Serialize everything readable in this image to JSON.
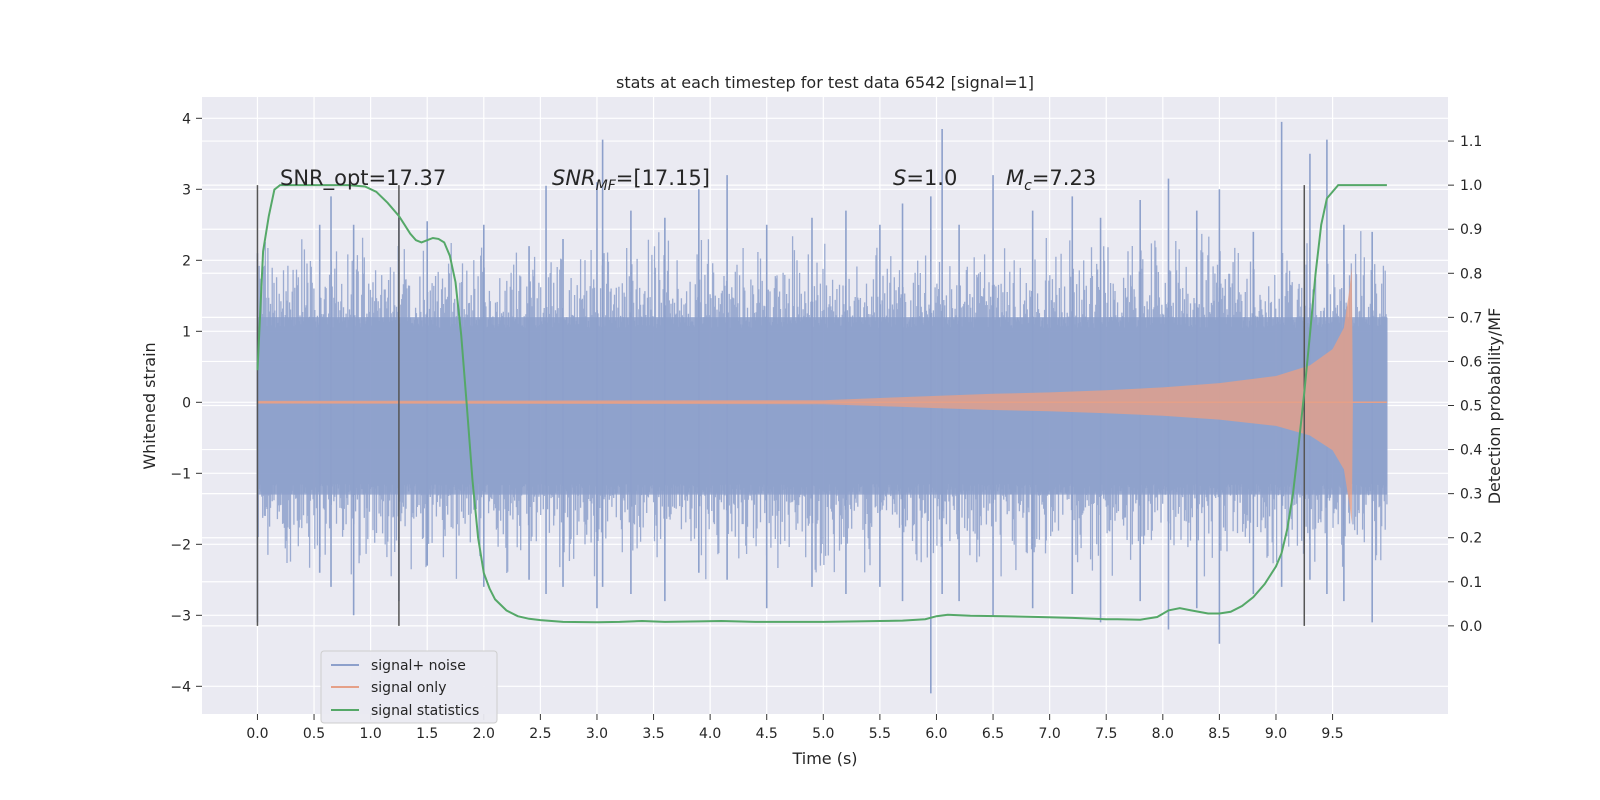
{
  "chart_data": {
    "type": "line",
    "title": "stats at each timestep for test data 6542 [signal=1]",
    "xlabel": "Time (s)",
    "ylabel_left": "Whitened strain",
    "ylabel_right": "Detection probability/MF",
    "xlim": [
      -0.49,
      10.52
    ],
    "ylim_left": [
      -4.39,
      4.3
    ],
    "ylim_right": [
      -0.2,
      1.2
    ],
    "x_ticks": [
      "0.0",
      "0.5",
      "1.0",
      "1.5",
      "2.0",
      "2.5",
      "3.0",
      "3.5",
      "4.0",
      "4.5",
      "5.0",
      "5.5",
      "6.0",
      "6.5",
      "7.0",
      "7.5",
      "8.0",
      "8.5",
      "9.0",
      "9.5"
    ],
    "y_ticks_left": [
      "4",
      "3",
      "2",
      "1",
      "0",
      "−1",
      "−2",
      "−3",
      "−4"
    ],
    "y_ticks_right": [
      "1.1",
      "1.0",
      "0.9",
      "0.8",
      "0.7",
      "0.6",
      "0.5",
      "0.4",
      "0.3",
      "0.2",
      "0.1",
      "0.0"
    ],
    "annotations": {
      "snr_opt": "SNR_opt=17.37",
      "snr_mf": {
        "sym": "SNR",
        "sub": "MF",
        "val": "=[17.15]"
      },
      "s": {
        "sym": "S",
        "val": "=1.0"
      },
      "mc": {
        "sym": "M",
        "sub": "c",
        "val": "=7.23"
      }
    },
    "legend": {
      "position": "lower-left",
      "entries": [
        "signal+ noise",
        "signal only",
        "signal statistics"
      ]
    },
    "vertical_markers_s": [
      0.0,
      1.25,
      9.25
    ],
    "series": [
      {
        "name": "signal+ noise",
        "axis": "left",
        "color": "#8da0cb",
        "noise_band": [
          -1.3,
          1.2
        ],
        "t_range": [
          0.0,
          9.98
        ],
        "peaks": [
          [
            0.0,
            2.1,
            -3.1
          ],
          [
            0.55,
            2.5,
            -2.4
          ],
          [
            0.65,
            2.9,
            -2.6
          ],
          [
            0.85,
            2.5,
            -3.0
          ],
          [
            1.25,
            2.6,
            -2.8
          ],
          [
            1.5,
            2.55,
            -2.3
          ],
          [
            2.0,
            2.5,
            -2.6
          ],
          [
            2.4,
            2.2,
            -2.5
          ],
          [
            2.55,
            3.05,
            -2.7
          ],
          [
            2.7,
            2.3,
            -2.6
          ],
          [
            3.0,
            3.1,
            -2.9
          ],
          [
            3.05,
            3.7,
            -2.6
          ],
          [
            3.3,
            2.7,
            -2.7
          ],
          [
            3.6,
            2.6,
            -2.8
          ],
          [
            3.9,
            3.0,
            -2.4
          ],
          [
            4.15,
            3.2,
            -2.5
          ],
          [
            4.5,
            2.5,
            -2.9
          ],
          [
            4.9,
            2.6,
            -2.6
          ],
          [
            5.2,
            2.7,
            -2.7
          ],
          [
            5.5,
            2.5,
            -2.6
          ],
          [
            5.7,
            2.8,
            -2.8
          ],
          [
            5.95,
            2.9,
            -4.1
          ],
          [
            6.05,
            3.85,
            -2.7
          ],
          [
            6.2,
            2.5,
            -2.8
          ],
          [
            6.5,
            3.2,
            -3.0
          ],
          [
            6.85,
            2.7,
            -2.9
          ],
          [
            7.2,
            2.9,
            -2.7
          ],
          [
            7.45,
            2.6,
            -3.1
          ],
          [
            7.8,
            2.85,
            -2.8
          ],
          [
            8.05,
            3.15,
            -3.2
          ],
          [
            8.3,
            2.7,
            -2.9
          ],
          [
            8.5,
            3.0,
            -3.4
          ],
          [
            8.8,
            2.4,
            -2.7
          ],
          [
            9.05,
            3.95,
            -2.6
          ],
          [
            9.3,
            3.5,
            -2.5
          ],
          [
            9.45,
            3.7,
            -2.7
          ],
          [
            9.6,
            2.5,
            -2.8
          ],
          [
            9.85,
            2.4,
            -3.1
          ]
        ]
      },
      {
        "name": "signal only",
        "axis": "left",
        "color": "#e5a088",
        "envelope": [
          [
            0.0,
            0.02
          ],
          [
            5.0,
            0.03
          ],
          [
            5.5,
            0.06
          ],
          [
            6.0,
            0.09
          ],
          [
            6.5,
            0.12
          ],
          [
            7.0,
            0.14
          ],
          [
            7.5,
            0.17
          ],
          [
            8.0,
            0.21
          ],
          [
            8.5,
            0.27
          ],
          [
            9.0,
            0.37
          ],
          [
            9.3,
            0.52
          ],
          [
            9.5,
            0.75
          ],
          [
            9.6,
            1.05
          ],
          [
            9.65,
            1.6
          ],
          [
            9.67,
            1.9
          ],
          [
            9.68,
            0.0
          ]
        ]
      },
      {
        "name": "signal statistics",
        "axis": "right",
        "color": "#55a868",
        "x": [
          0.0,
          0.05,
          0.1,
          0.15,
          0.2,
          0.3,
          0.5,
          0.8,
          0.95,
          1.05,
          1.15,
          1.25,
          1.3,
          1.35,
          1.4,
          1.45,
          1.5,
          1.55,
          1.6,
          1.65,
          1.7,
          1.75,
          1.8,
          1.85,
          1.9,
          1.95,
          2.0,
          2.05,
          2.1,
          2.2,
          2.3,
          2.4,
          2.5,
          2.7,
          3.0,
          3.2,
          3.4,
          3.6,
          3.9,
          4.1,
          4.4,
          4.7,
          5.0,
          5.3,
          5.5,
          5.7,
          5.9,
          6.0,
          6.1,
          6.3,
          6.6,
          6.9,
          7.2,
          7.5,
          7.6,
          7.8,
          7.95,
          8.05,
          8.15,
          8.25,
          8.4,
          8.5,
          8.6,
          8.7,
          8.8,
          8.9,
          9.0,
          9.05,
          9.1,
          9.15,
          9.2,
          9.25,
          9.3,
          9.35,
          9.4,
          9.45,
          9.55,
          9.7,
          9.9,
          9.98
        ],
        "y": [
          0.58,
          0.85,
          0.93,
          0.99,
          1.0,
          1.0,
          1.0,
          1.0,
          0.997,
          0.985,
          0.96,
          0.93,
          0.91,
          0.89,
          0.875,
          0.87,
          0.875,
          0.88,
          0.878,
          0.87,
          0.84,
          0.78,
          0.66,
          0.5,
          0.33,
          0.2,
          0.12,
          0.085,
          0.06,
          0.035,
          0.022,
          0.016,
          0.013,
          0.009,
          0.008,
          0.009,
          0.011,
          0.009,
          0.01,
          0.011,
          0.009,
          0.009,
          0.009,
          0.01,
          0.011,
          0.012,
          0.015,
          0.022,
          0.025,
          0.023,
          0.022,
          0.02,
          0.018,
          0.015,
          0.015,
          0.014,
          0.02,
          0.035,
          0.04,
          0.035,
          0.028,
          0.028,
          0.032,
          0.045,
          0.065,
          0.095,
          0.135,
          0.165,
          0.22,
          0.3,
          0.41,
          0.53,
          0.66,
          0.8,
          0.91,
          0.97,
          1.0,
          1.0,
          1.0,
          1.0
        ]
      }
    ]
  }
}
